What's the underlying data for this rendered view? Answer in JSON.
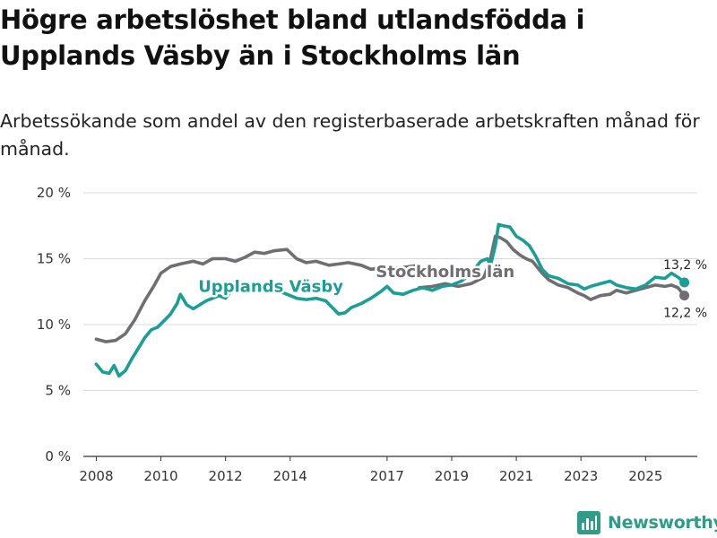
{
  "header": {
    "title": "Högre arbetslöshet bland utlandsfödda i Upplands Väsby än i Stockholms län",
    "subtitle": "Arbetssökande som andel av den registerbaserade arbetskraften månad för månad."
  },
  "brand": {
    "name": "Newsworthy"
  },
  "colors": {
    "vasby": "#1a9e96",
    "lan": "#6e6e73",
    "grid": "#d9d9d9",
    "axis": "#333333"
  },
  "chart_data": {
    "type": "line",
    "title": "Högre arbetslöshet bland utlandsfödda i Upplands Väsby än i Stockholms län",
    "subtitle": "Arbetssökande som andel av den registerbaserade arbetskraften månad för månad.",
    "xlabel": "",
    "ylabel": "",
    "xlim": [
      2007.6,
      2026.6
    ],
    "ylim": [
      0,
      20
    ],
    "y_ticks": [
      0,
      5,
      10,
      15,
      20
    ],
    "y_tick_labels": [
      "0 %",
      "5 %",
      "10 %",
      "15 %",
      "20 %"
    ],
    "x_ticks": [
      2008,
      2010,
      2012,
      2014,
      2017,
      2019,
      2021,
      2023,
      2025
    ],
    "x_tick_labels": [
      "2008",
      "2010",
      "2012",
      "2014",
      "2017",
      "2019",
      "2021",
      "2023",
      "2025"
    ],
    "grid": "horizontal",
    "series": [
      {
        "name": "Stockholms län",
        "label": "Stockholms län",
        "color": "#6e6e73",
        "end_label": "12,2 %",
        "points": [
          [
            2008.0,
            8.9
          ],
          [
            2008.3,
            8.7
          ],
          [
            2008.6,
            8.8
          ],
          [
            2008.9,
            9.3
          ],
          [
            2009.2,
            10.4
          ],
          [
            2009.5,
            11.8
          ],
          [
            2009.8,
            13.0
          ],
          [
            2010.0,
            13.9
          ],
          [
            2010.3,
            14.4
          ],
          [
            2010.6,
            14.6
          ],
          [
            2011.0,
            14.8
          ],
          [
            2011.3,
            14.6
          ],
          [
            2011.6,
            15.0
          ],
          [
            2012.0,
            15.0
          ],
          [
            2012.3,
            14.8
          ],
          [
            2012.6,
            15.1
          ],
          [
            2012.9,
            15.5
          ],
          [
            2013.2,
            15.4
          ],
          [
            2013.5,
            15.6
          ],
          [
            2013.9,
            15.7
          ],
          [
            2014.2,
            15.0
          ],
          [
            2014.5,
            14.7
          ],
          [
            2014.8,
            14.8
          ],
          [
            2015.2,
            14.5
          ],
          [
            2015.5,
            14.6
          ],
          [
            2015.8,
            14.7
          ],
          [
            2016.2,
            14.5
          ],
          [
            2016.5,
            14.2
          ],
          [
            2016.8,
            14.3
          ],
          [
            2017.1,
            14.3
          ],
          [
            2017.4,
            14.3
          ],
          [
            2017.7,
            14.4
          ],
          [
            2018.0,
            14.5
          ],
          [
            2018.0,
            12.8
          ],
          [
            2018.4,
            12.9
          ],
          [
            2018.8,
            13.1
          ],
          [
            2019.2,
            12.9
          ],
          [
            2019.6,
            13.1
          ],
          [
            2020.0,
            13.6
          ],
          [
            2020.2,
            15.0
          ],
          [
            2020.35,
            16.7
          ],
          [
            2020.5,
            16.6
          ],
          [
            2020.7,
            16.3
          ],
          [
            2020.9,
            15.7
          ],
          [
            2021.1,
            15.3
          ],
          [
            2021.3,
            15.0
          ],
          [
            2021.5,
            14.8
          ],
          [
            2021.8,
            13.9
          ],
          [
            2022.0,
            13.4
          ],
          [
            2022.3,
            13.0
          ],
          [
            2022.6,
            12.8
          ],
          [
            2022.9,
            12.4
          ],
          [
            2023.1,
            12.2
          ],
          [
            2023.3,
            11.9
          ],
          [
            2023.6,
            12.2
          ],
          [
            2023.9,
            12.3
          ],
          [
            2024.1,
            12.6
          ],
          [
            2024.4,
            12.4
          ],
          [
            2024.7,
            12.6
          ],
          [
            2025.0,
            12.8
          ],
          [
            2025.3,
            13.0
          ],
          [
            2025.6,
            12.9
          ],
          [
            2025.8,
            13.0
          ],
          [
            2026.0,
            12.8
          ],
          [
            2026.2,
            12.2
          ]
        ]
      },
      {
        "name": "Upplands Väsby",
        "label": "Upplands Väsby",
        "color": "#1a9e96",
        "end_label": "13,2 %",
        "points": [
          [
            2008.0,
            7.0
          ],
          [
            2008.2,
            6.4
          ],
          [
            2008.4,
            6.3
          ],
          [
            2008.55,
            6.9
          ],
          [
            2008.7,
            6.1
          ],
          [
            2008.9,
            6.5
          ],
          [
            2009.1,
            7.4
          ],
          [
            2009.3,
            8.2
          ],
          [
            2009.5,
            9.0
          ],
          [
            2009.7,
            9.6
          ],
          [
            2009.9,
            9.8
          ],
          [
            2010.1,
            10.3
          ],
          [
            2010.3,
            10.8
          ],
          [
            2010.5,
            11.6
          ],
          [
            2010.6,
            12.3
          ],
          [
            2010.8,
            11.5
          ],
          [
            2011.0,
            11.2
          ],
          [
            2011.2,
            11.5
          ],
          [
            2011.4,
            11.8
          ],
          [
            2011.6,
            12.0
          ],
          [
            2011.8,
            12.2
          ],
          [
            2012.0,
            12.0
          ],
          [
            2012.2,
            12.6
          ],
          [
            2012.5,
            12.7
          ],
          [
            2012.8,
            12.9
          ],
          [
            2013.1,
            13.1
          ],
          [
            2013.3,
            12.8
          ],
          [
            2013.6,
            12.6
          ],
          [
            2013.9,
            12.3
          ],
          [
            2014.2,
            12.0
          ],
          [
            2014.5,
            11.9
          ],
          [
            2014.8,
            12.0
          ],
          [
            2015.1,
            11.8
          ],
          [
            2015.3,
            11.3
          ],
          [
            2015.5,
            10.8
          ],
          [
            2015.7,
            10.9
          ],
          [
            2015.9,
            11.3
          ],
          [
            2016.2,
            11.6
          ],
          [
            2016.5,
            12.0
          ],
          [
            2016.8,
            12.5
          ],
          [
            2017.0,
            12.9
          ],
          [
            2017.2,
            12.4
          ],
          [
            2017.5,
            12.3
          ],
          [
            2017.8,
            12.6
          ],
          [
            2018.1,
            12.8
          ],
          [
            2018.4,
            12.6
          ],
          [
            2018.7,
            12.9
          ],
          [
            2019.0,
            13.0
          ],
          [
            2019.3,
            13.3
          ],
          [
            2019.6,
            13.9
          ],
          [
            2019.9,
            14.8
          ],
          [
            2020.1,
            15.0
          ],
          [
            2020.2,
            14.5
          ],
          [
            2020.35,
            16.0
          ],
          [
            2020.45,
            17.6
          ],
          [
            2020.6,
            17.5
          ],
          [
            2020.8,
            17.4
          ],
          [
            2021.0,
            16.7
          ],
          [
            2021.2,
            16.4
          ],
          [
            2021.4,
            16.0
          ],
          [
            2021.6,
            15.2
          ],
          [
            2021.8,
            14.2
          ],
          [
            2022.0,
            13.7
          ],
          [
            2022.3,
            13.5
          ],
          [
            2022.6,
            13.1
          ],
          [
            2022.9,
            13.0
          ],
          [
            2023.1,
            12.7
          ],
          [
            2023.3,
            12.9
          ],
          [
            2023.6,
            13.1
          ],
          [
            2023.9,
            13.3
          ],
          [
            2024.1,
            13.0
          ],
          [
            2024.4,
            12.8
          ],
          [
            2024.7,
            12.7
          ],
          [
            2025.0,
            13.0
          ],
          [
            2025.3,
            13.6
          ],
          [
            2025.6,
            13.5
          ],
          [
            2025.8,
            13.9
          ],
          [
            2026.0,
            13.6
          ],
          [
            2026.2,
            13.2
          ]
        ]
      }
    ],
    "annotations": [
      {
        "text": "Upplands Väsby",
        "series": "Upplands Väsby",
        "x": 2013.4,
        "y": 12.5
      },
      {
        "text": "Stockholms län",
        "series": "Stockholms län",
        "x": 2018.8,
        "y": 13.6
      }
    ]
  }
}
